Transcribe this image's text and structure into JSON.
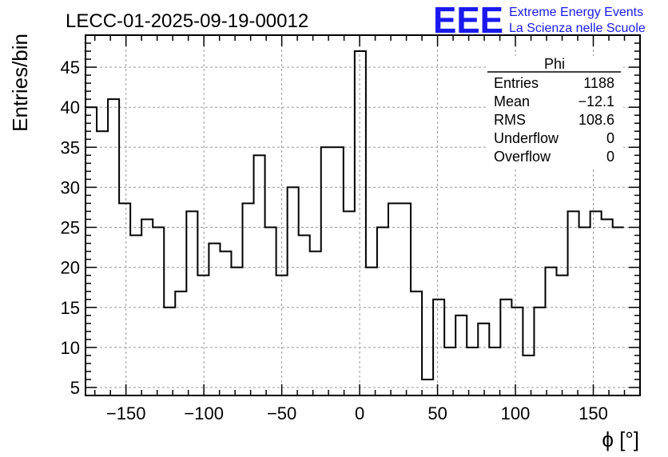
{
  "chart_data": {
    "type": "histogram",
    "title": "LECC-01-2025-09-19-00012",
    "xlabel": "ϕ [°]",
    "ylabel": "Entries/bin",
    "xlim": [
      -176,
      180
    ],
    "ylim": [
      4,
      49
    ],
    "bin_width": 7.2,
    "xticks": [
      -150,
      -100,
      -50,
      0,
      50,
      100,
      150
    ],
    "xtick_labels": [
      "−150",
      "−100",
      "−50",
      "0",
      "50",
      "100",
      "150"
    ],
    "yticks": [
      5,
      10,
      15,
      20,
      25,
      30,
      35,
      40,
      45
    ],
    "grid": true,
    "values": [
      40,
      37,
      41,
      28,
      24,
      26,
      25,
      15,
      17,
      27,
      19,
      23,
      22,
      20,
      28,
      34,
      25,
      19,
      30,
      24,
      22,
      35,
      35,
      27,
      47,
      20,
      25,
      28,
      28,
      17,
      6,
      16,
      10,
      14,
      10,
      13,
      10,
      16,
      15,
      9,
      15,
      20,
      19,
      27,
      25,
      27,
      26,
      25
    ],
    "stats": {
      "name": "Phi",
      "rows": [
        {
          "label": "Entries",
          "value": "1188"
        },
        {
          "label": "Mean",
          "value": "−12.1"
        },
        {
          "label": "RMS",
          "value": "108.6"
        },
        {
          "label": "Underflow",
          "value": "0"
        },
        {
          "label": "Overflow",
          "value": "0"
        }
      ]
    }
  },
  "logo": {
    "text": "EEE",
    "line1": "Extreme Energy Events",
    "line2": "La Scienza nelle Scuole",
    "color": "#1a1aee"
  }
}
